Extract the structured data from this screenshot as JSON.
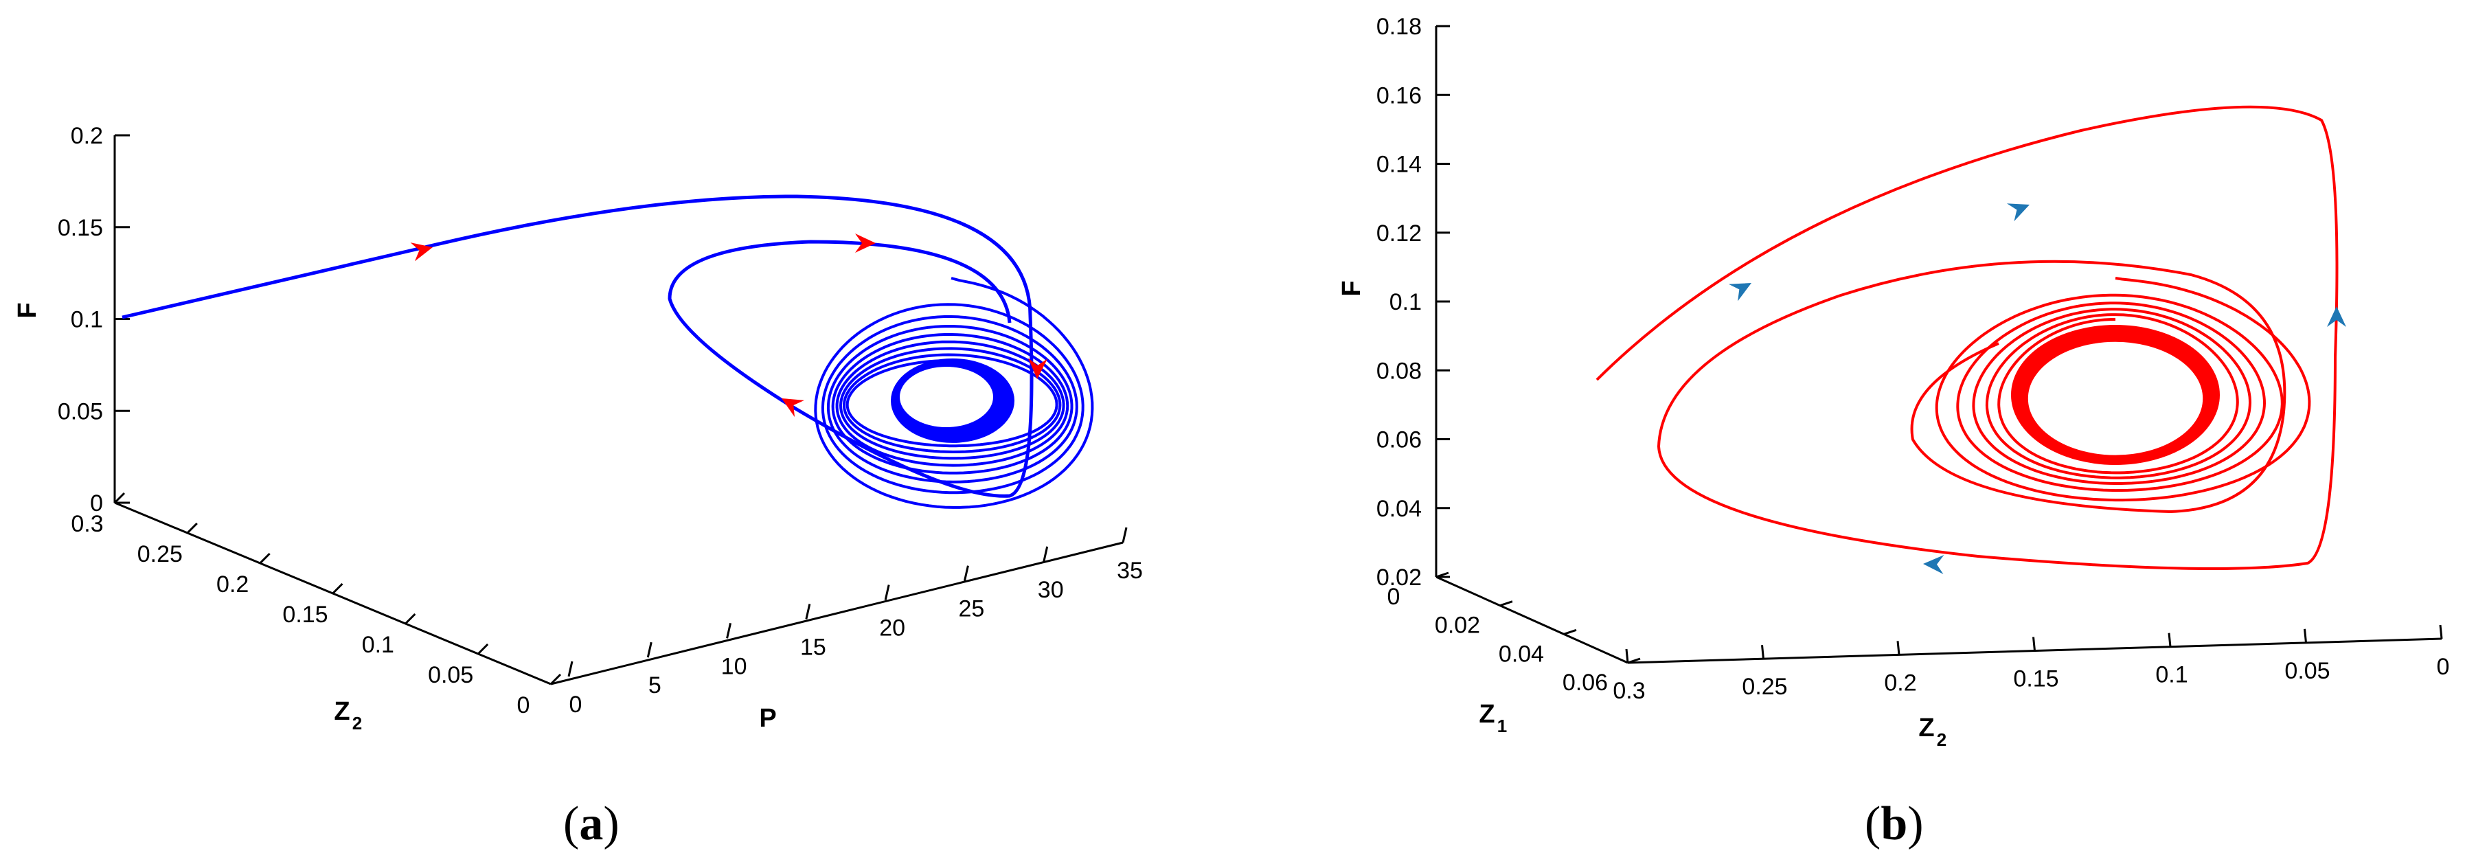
{
  "chart_data": [
    {
      "type": "line",
      "panel_label": "a",
      "axes": {
        "x": {
          "label": "P",
          "ticks": [
            "0",
            "5",
            "10",
            "15",
            "20",
            "25",
            "30",
            "35"
          ]
        },
        "y": {
          "label": "Z",
          "label_sub": "2",
          "ticks": [
            "0.3",
            "0.25",
            "0.2",
            "0.15",
            "0.1",
            "0.05",
            "0"
          ]
        },
        "z": {
          "label": "F",
          "ticks": [
            "0",
            "0.05",
            "0.1",
            "0.15",
            "0.2"
          ]
        }
      },
      "zlim": [
        0,
        0.2
      ],
      "xlim": [
        0,
        35
      ],
      "ylim": [
        0,
        0.3
      ],
      "series_color": "#0000ff",
      "arrow_color": "#ff0000",
      "trajectory": "spiral converging to a limit cycle, starting at F = 0.1 on the left edge"
    },
    {
      "type": "line",
      "panel_label": "b",
      "axes": {
        "x": {
          "label": "Z",
          "label_sub": "2",
          "ticks": [
            "0.3",
            "0.25",
            "0.2",
            "0.15",
            "0.1",
            "0.05",
            "0"
          ]
        },
        "y": {
          "label": "Z",
          "label_sub": "1",
          "ticks": [
            "0",
            "0.02",
            "0.04",
            "0.06"
          ]
        },
        "z": {
          "label": "F",
          "ticks": [
            "0.02",
            "0.04",
            "0.06",
            "0.08",
            "0.1",
            "0.12",
            "0.14",
            "0.16",
            "0.18"
          ]
        }
      },
      "zlim": [
        0.02,
        0.18
      ],
      "xlim": [
        0,
        0.3
      ],
      "ylim": [
        0,
        0.06
      ],
      "series_color": "#ff0000",
      "arrow_color": "#1f77b4",
      "trajectory": "spiral converging to a limit cycle"
    }
  ],
  "captions": {
    "a": "a",
    "b": "b",
    "open": "(",
    "close": ")"
  }
}
